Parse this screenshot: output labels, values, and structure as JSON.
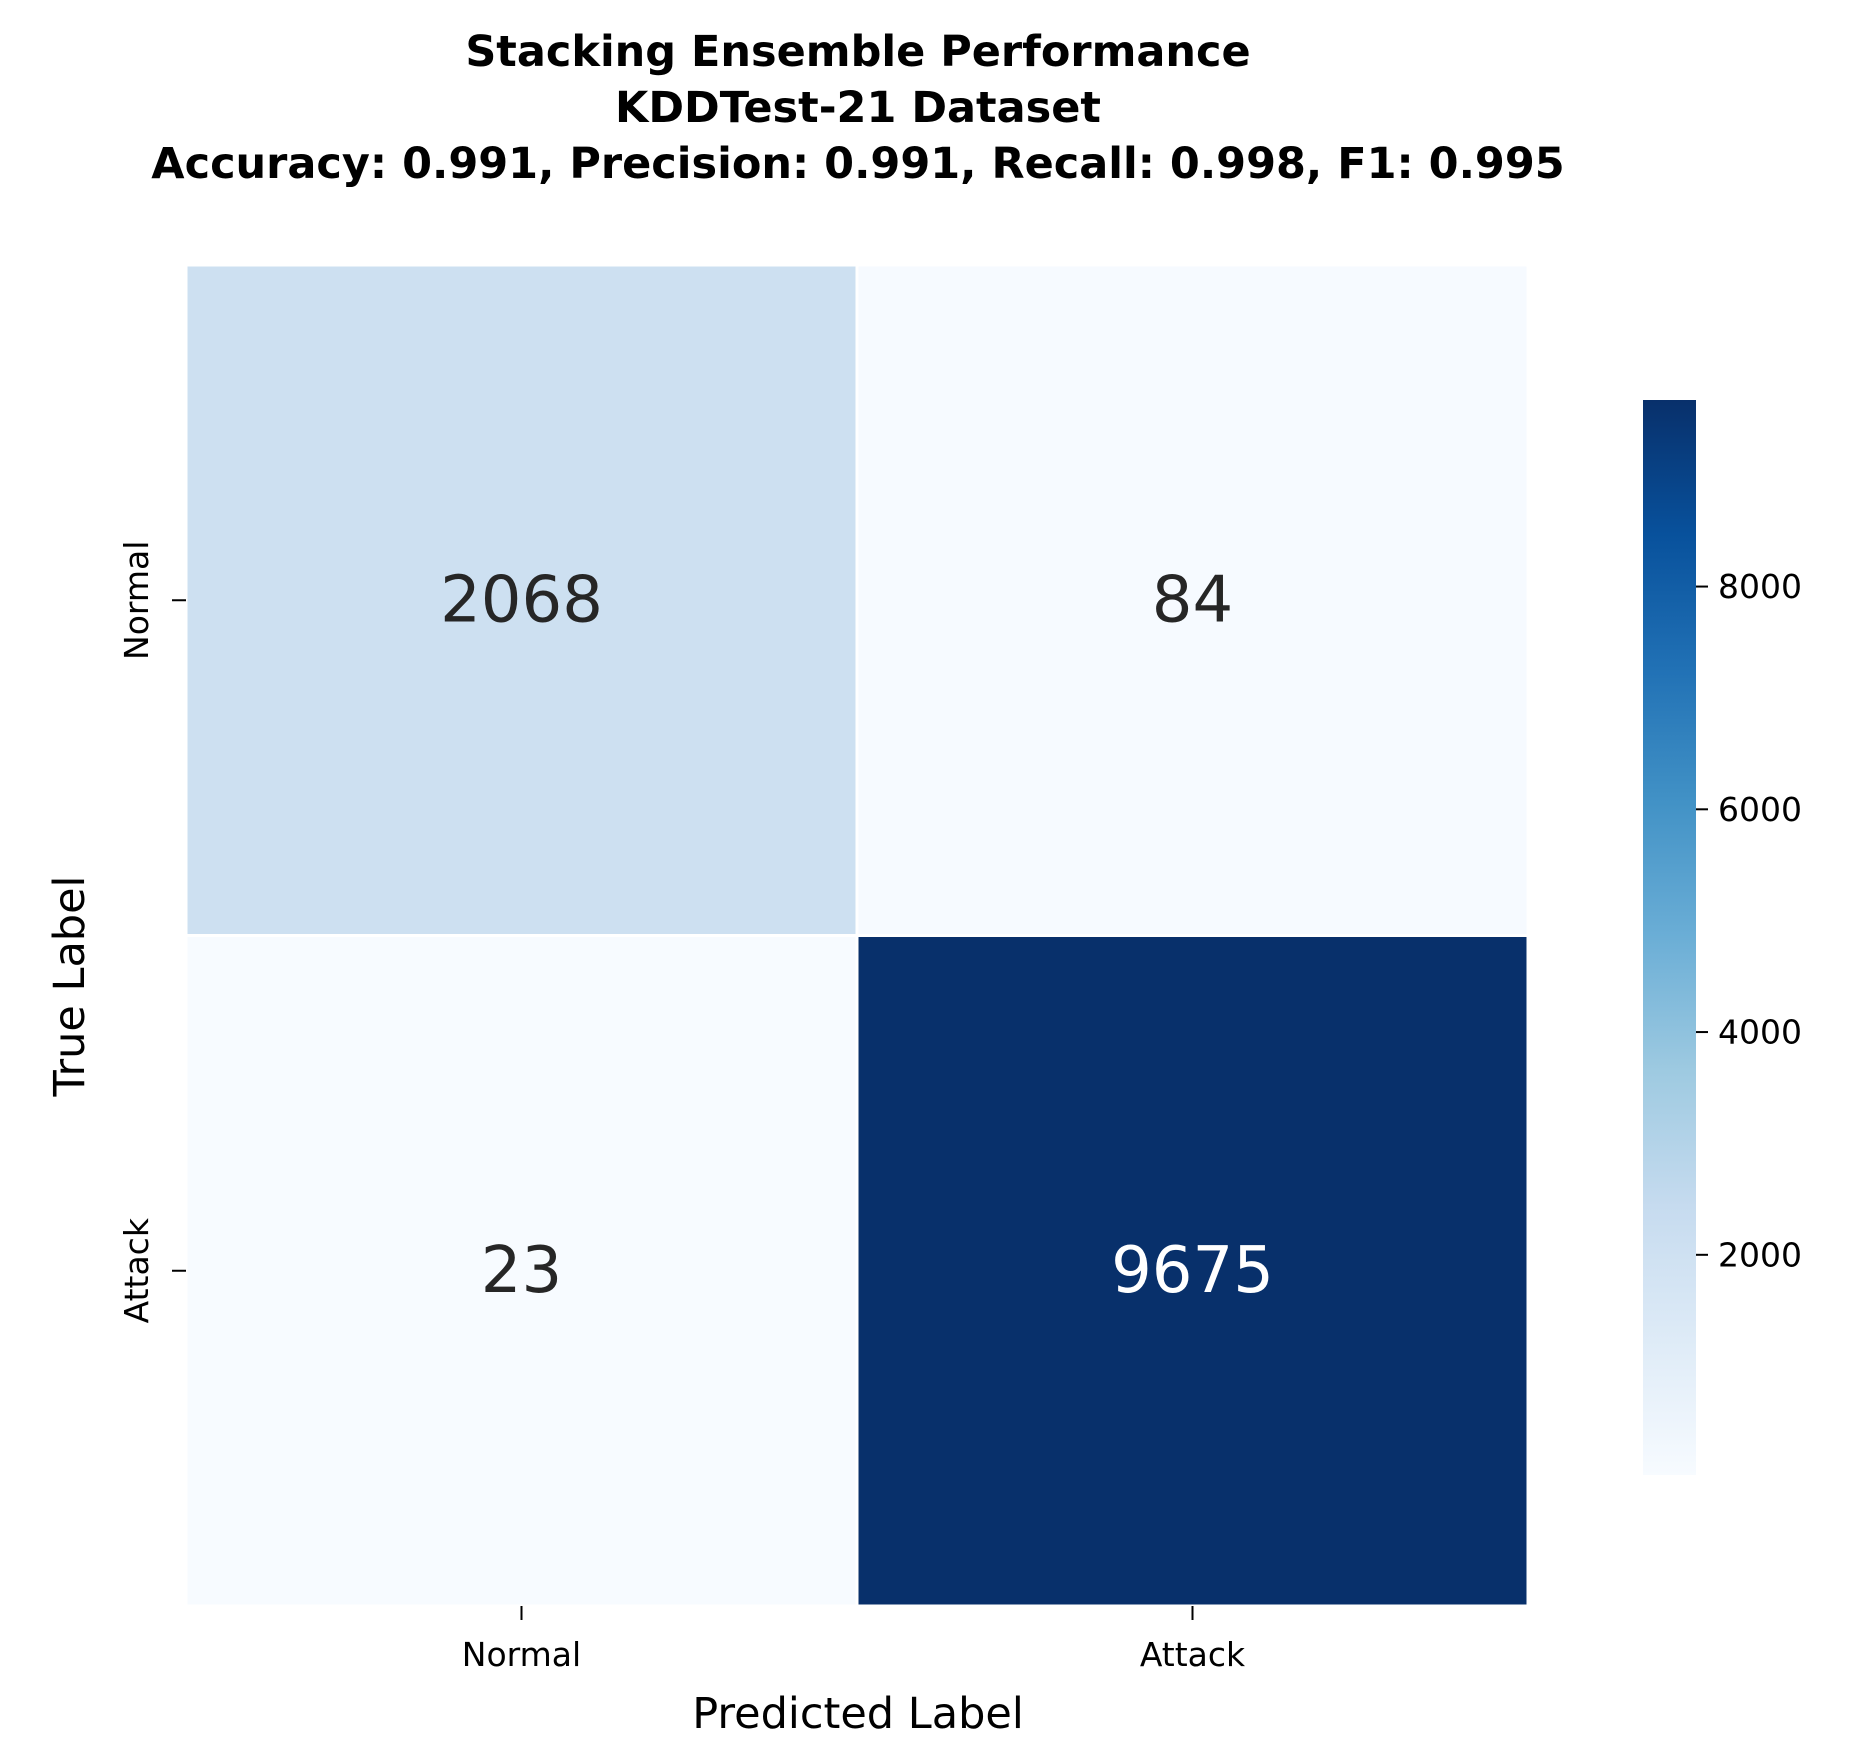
{
  "chart_data": {
    "type": "heatmap",
    "title_lines": [
      "Stacking Ensemble Performance",
      "KDDTest-21 Dataset",
      "Accuracy: 0.991, Precision: 0.991, Recall: 0.998, F1: 0.995"
    ],
    "xlabel": "Predicted Label",
    "ylabel": "True Label",
    "x_categories": [
      "Normal",
      "Attack"
    ],
    "y_categories": [
      "Normal",
      "Attack"
    ],
    "values": [
      [
        2068,
        84
      ],
      [
        23,
        9675
      ]
    ],
    "colormap": "Blues",
    "vmin": 23,
    "vmax": 9675,
    "colorbar_ticks": [
      2000,
      4000,
      6000,
      8000
    ],
    "colorbar_tick_labels": [
      "2000",
      "4000",
      "6000",
      "8000"
    ]
  }
}
